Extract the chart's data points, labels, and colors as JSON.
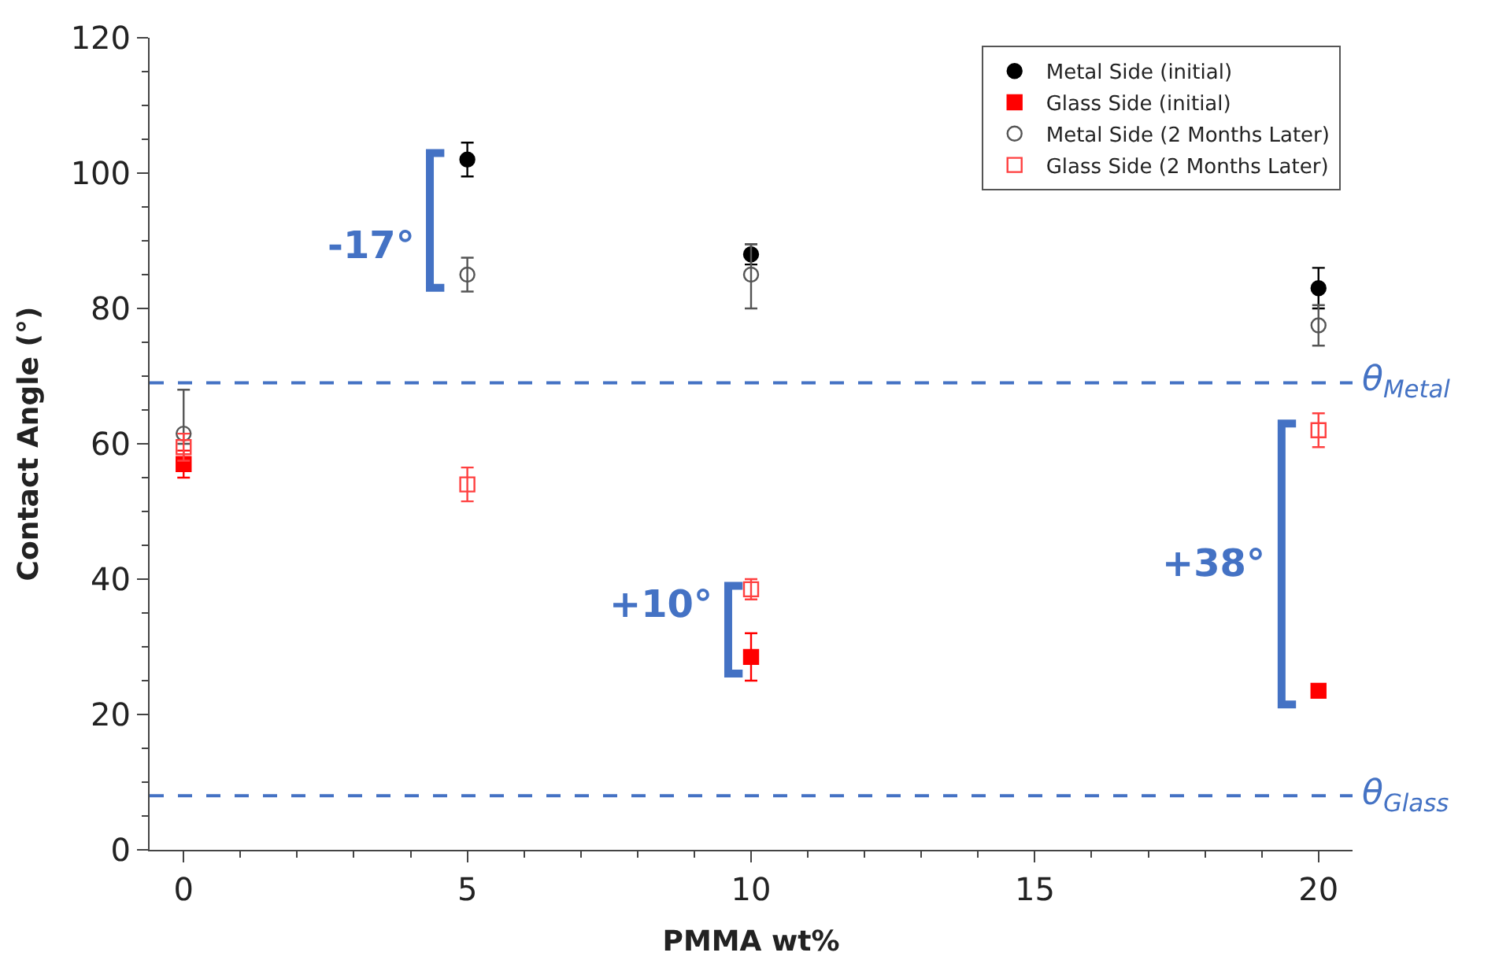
{
  "chart_data": {
    "type": "scatter",
    "xlabel": "PMMA wt%",
    "ylabel": "Contact Angle (°)",
    "x": [
      0,
      5,
      10,
      20
    ],
    "xlim": [
      -0.6,
      20.6
    ],
    "xticks": [
      0,
      5,
      10,
      15,
      20
    ],
    "ylim": [
      0,
      120
    ],
    "yticks": [
      0,
      20,
      40,
      60,
      80,
      100,
      120
    ],
    "legend": "top right",
    "series": [
      {
        "name": "Metal Side (initial)",
        "color": "#000000",
        "marker": "circle",
        "values": [
          null,
          102,
          88,
          83
        ],
        "errors": [
          null,
          2.5,
          1.5,
          3
        ]
      },
      {
        "name": "Glass Side (initial)",
        "color": "#ff0000",
        "marker": "square",
        "values": [
          57,
          null,
          28.5,
          23.5
        ],
        "errors": [
          2,
          null,
          3.5,
          null
        ]
      },
      {
        "name": "Metal Side (2 Months Later)",
        "color": "#555555",
        "marker": "circle-open",
        "values": [
          61.5,
          85,
          85,
          77.5
        ],
        "errors": [
          [
            60,
            68
          ],
          2.5,
          [
            80,
            89.5
          ],
          3
        ]
      },
      {
        "name": "Glass Side (2 Months Later)",
        "color": "#ff4040",
        "marker": "square-open",
        "values": [
          59.5,
          54,
          38.5,
          62
        ],
        "errors": [
          2,
          2.5,
          1.5,
          2.5
        ]
      }
    ],
    "ref_lines": [
      {
        "axis": "y",
        "value": 69,
        "label": "θ$_{Metal}$",
        "color": "#4472c4",
        "line_style": "dashed"
      },
      {
        "axis": "y",
        "value": 8,
        "label": "θ$_{Glass}$",
        "color": "#4472c4",
        "line_style": "dashed"
      }
    ],
    "annotations": [
      "-17°",
      "+10°",
      "+38°"
    ]
  }
}
